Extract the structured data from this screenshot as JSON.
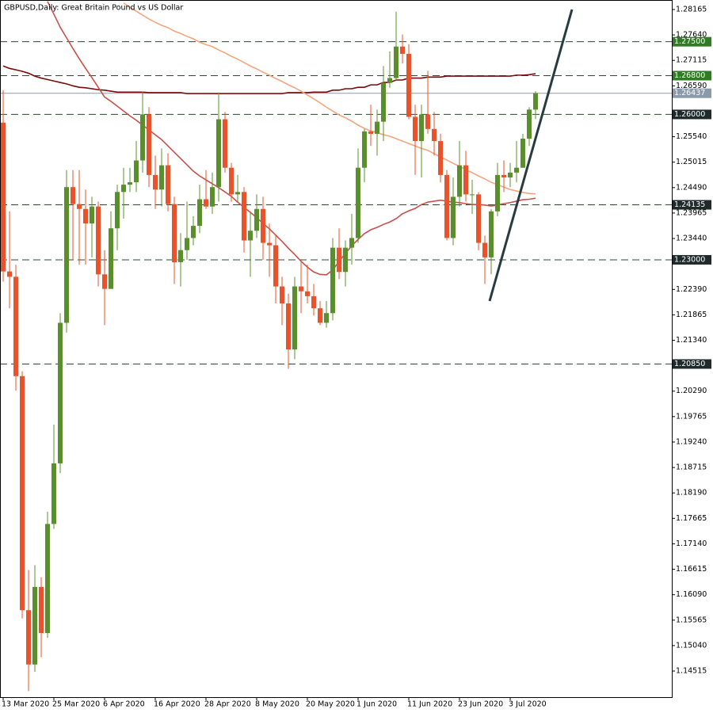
{
  "chart_data": {
    "type": "candlestick",
    "title": "GBPUSD,Daily:  Great Britain Pound vs US Dollar",
    "categories": [
      "13 Mar 2020",
      null,
      null,
      null,
      null,
      null,
      null,
      null,
      "25 Mar 2020",
      null,
      null,
      null,
      null,
      null,
      null,
      null,
      "6 Apr 2020",
      null,
      null,
      null,
      null,
      null,
      null,
      null,
      "16 Apr 2020",
      null,
      null,
      null,
      null,
      null,
      null,
      null,
      "28 Apr 2020",
      null,
      null,
      null,
      null,
      null,
      null,
      null,
      "8 May 2020",
      null,
      null,
      null,
      null,
      null,
      null,
      null,
      "20 May 2020",
      null,
      null,
      null,
      null,
      null,
      null,
      null,
      "1 Jun 2020",
      null,
      null,
      null,
      null,
      null,
      null,
      null,
      "11 Jun 2020",
      null,
      null,
      null,
      null,
      null,
      null,
      null,
      "23 Jun 2020",
      null,
      null,
      null,
      null,
      null,
      null,
      null,
      "3 Jul 2020",
      null,
      null,
      null,
      null
    ],
    "open": [
      1.2583,
      1.2276,
      1.2265,
      1.206,
      1.1577,
      1.1465,
      1.1625,
      1.153,
      1.1755,
      1.188,
      1.217,
      1.245,
      1.2415,
      1.2405,
      1.2375,
      1.241,
      1.227,
      1.224,
      1.2365,
      1.244,
      1.2455,
      1.246,
      1.2505,
      1.26,
      1.2475,
      1.2445,
      1.2495,
      1.2415,
      1.2295,
      1.232,
      1.2345,
      1.237,
      1.2425,
      1.241,
      1.245,
      1.259,
      1.249,
      1.2435,
      1.244,
      1.234,
      1.236,
      1.2405,
      1.2335,
      1.233,
      1.2245,
      1.221,
      1.2115,
      1.2245,
      1.2235,
      1.2225,
      1.22,
      1.217,
      1.219,
      1.2325,
      1.2275,
      1.2325,
      1.2345,
      1.249,
      1.2565,
      1.256,
      1.2585,
      1.2665,
      1.2675,
      1.274,
      1.2725,
      1.2595,
      1.2545,
      1.26,
      1.257,
      1.2545,
      1.2475,
      1.2345,
      1.243,
      1.2495,
      1.2435,
      1.2435,
      1.2335,
      1.2305,
      1.24,
      1.2475,
      1.247,
      1.248,
      1.249,
      1.255,
      1.261
    ],
    "high": [
      1.265,
      1.24,
      1.229,
      1.207,
      1.166,
      1.167,
      1.1645,
      1.178,
      1.196,
      1.219,
      1.2485,
      1.2485,
      1.2485,
      1.2445,
      1.243,
      1.242,
      1.232,
      1.24,
      1.2455,
      1.249,
      1.249,
      1.2545,
      1.2647,
      1.2615,
      1.2515,
      1.253,
      1.252,
      1.243,
      1.2355,
      1.242,
      1.239,
      1.2455,
      1.2485,
      1.248,
      1.2645,
      1.2605,
      1.25,
      1.2475,
      1.245,
      1.24,
      1.2435,
      1.243,
      1.2375,
      1.235,
      1.2265,
      1.223,
      1.2265,
      1.2295,
      1.229,
      1.225,
      1.2215,
      1.2215,
      1.2345,
      1.2365,
      1.234,
      1.2395,
      1.253,
      1.257,
      1.262,
      1.261,
      1.27,
      1.273,
      1.2812,
      1.2765,
      1.2745,
      1.262,
      1.262,
      1.269,
      1.2605,
      1.256,
      1.2485,
      1.247,
      1.2545,
      1.2525,
      1.2465,
      1.244,
      1.235,
      1.2405,
      1.25,
      1.2505,
      1.25,
      1.2545,
      1.256,
      1.2615,
      1.2648
    ],
    "low": [
      1.2255,
      1.22,
      1.203,
      1.156,
      1.141,
      1.145,
      1.148,
      1.152,
      1.1745,
      1.186,
      1.215,
      1.23,
      1.229,
      1.229,
      1.2305,
      1.2245,
      1.2165,
      1.224,
      1.232,
      1.2385,
      1.244,
      1.244,
      1.248,
      1.245,
      1.2405,
      1.241,
      1.24,
      1.225,
      1.2245,
      1.23,
      1.233,
      1.2355,
      1.2405,
      1.2395,
      1.242,
      1.248,
      1.242,
      1.242,
      1.2315,
      1.2265,
      1.2345,
      1.23,
      1.2265,
      1.221,
      1.2165,
      1.2075,
      1.2095,
      1.219,
      1.221,
      1.2185,
      1.2165,
      1.216,
      1.2175,
      1.226,
      1.2245,
      1.229,
      1.2335,
      1.246,
      1.2535,
      1.2515,
      1.2545,
      1.2655,
      1.267,
      1.2705,
      1.259,
      1.2475,
      1.247,
      1.256,
      1.2515,
      1.246,
      1.234,
      1.233,
      1.241,
      1.242,
      1.2395,
      1.232,
      1.225,
      1.227,
      1.239,
      1.244,
      1.245,
      1.246,
      1.249,
      1.2535,
      1.259
    ],
    "close": [
      1.2276,
      1.2265,
      1.206,
      1.1577,
      1.1465,
      1.1625,
      1.153,
      1.1755,
      1.188,
      1.217,
      1.245,
      1.2415,
      1.2405,
      1.2375,
      1.241,
      1.227,
      1.224,
      1.2365,
      1.244,
      1.2455,
      1.246,
      1.2505,
      1.26,
      1.2475,
      1.2445,
      1.2495,
      1.2415,
      1.2295,
      1.232,
      1.2345,
      1.237,
      1.2425,
      1.241,
      1.245,
      1.259,
      1.249,
      1.2435,
      1.244,
      1.234,
      1.236,
      1.2405,
      1.2335,
      1.233,
      1.2245,
      1.221,
      1.2115,
      1.2245,
      1.2235,
      1.2225,
      1.22,
      1.217,
      1.219,
      1.2325,
      1.2275,
      1.2325,
      1.2345,
      1.249,
      1.2565,
      1.256,
      1.2585,
      1.2665,
      1.2675,
      1.274,
      1.2725,
      1.2595,
      1.2545,
      1.26,
      1.257,
      1.2545,
      1.2475,
      1.2345,
      1.243,
      1.2495,
      1.2435,
      1.2435,
      1.2335,
      1.2305,
      1.24,
      1.2475,
      1.247,
      1.248,
      1.249,
      1.255,
      1.261,
      1.26437
    ],
    "up_color": "#5b8f2b",
    "down_color": "#e9532b",
    "overlays": [
      {
        "type": "line",
        "color": "#7a0a0a",
        "values": [
          1.27,
          1.2695,
          1.2692,
          1.2689,
          1.2685,
          1.2679,
          1.2675,
          1.2672,
          1.2669,
          1.2666,
          1.2663,
          1.2659,
          1.2656,
          1.2655,
          1.2653,
          1.2651,
          1.265,
          1.2648,
          1.2646,
          1.2646,
          1.2646,
          1.2646,
          1.2646,
          1.2645,
          1.2645,
          1.2645,
          1.2645,
          1.2645,
          1.2645,
          1.2643,
          1.2643,
          1.2643,
          1.2643,
          1.2643,
          1.2643,
          1.2643,
          1.2643,
          1.2643,
          1.2643,
          1.2643,
          1.2643,
          1.2643,
          1.2643,
          1.2643,
          1.2643,
          1.2645,
          1.2645,
          1.2645,
          1.2645,
          1.2646,
          1.2646,
          1.2646,
          1.265,
          1.265,
          1.2653,
          1.2653,
          1.2656,
          1.2656,
          1.2661,
          1.2661,
          1.2666,
          1.2666,
          1.2671,
          1.2671,
          1.2675,
          1.2675,
          1.2675,
          1.2677,
          1.2677,
          1.2677,
          1.2679,
          1.2679,
          1.2679,
          1.2679,
          1.2679,
          1.2679,
          1.2679,
          1.2679,
          1.2679,
          1.2679,
          1.2679,
          1.2681,
          1.2681,
          1.2682,
          1.2684
        ]
      },
      {
        "type": "line",
        "color": "#f4a57c",
        "values": [
          null,
          null,
          null,
          null,
          null,
          null,
          null,
          null,
          null,
          null,
          null,
          null,
          null,
          null,
          null,
          null,
          null,
          null,
          null,
          1.283,
          1.2821,
          1.2813,
          1.2805,
          1.2797,
          1.279,
          1.2784,
          1.2779,
          1.2772,
          1.2767,
          1.2761,
          1.2756,
          1.2749,
          1.2744,
          1.274,
          1.2733,
          1.2727,
          1.272,
          1.2714,
          1.2707,
          1.27,
          1.2694,
          1.2687,
          1.2681,
          1.2674,
          1.2668,
          1.2661,
          1.2655,
          1.2648,
          1.264,
          1.2632,
          1.2624,
          1.2615,
          1.2607,
          1.2599,
          1.2593,
          1.2586,
          1.2578,
          1.2571,
          1.2566,
          1.2563,
          1.2558,
          1.2555,
          1.255,
          1.2545,
          1.254,
          1.2535,
          1.253,
          1.2526,
          1.2519,
          1.2512,
          1.2506,
          1.2499,
          1.2493,
          1.2486,
          1.248,
          1.2473,
          1.2467,
          1.246,
          1.2455,
          1.245,
          1.2445,
          1.2442,
          1.2439,
          1.2437,
          1.2436
        ]
      },
      {
        "type": "line",
        "color": "#c8504a",
        "values": [
          null,
          null,
          null,
          null,
          null,
          null,
          null,
          1.2833,
          1.2807,
          1.278,
          1.2758,
          1.2736,
          1.2715,
          1.2695,
          1.2676,
          1.2656,
          1.2636,
          1.2627,
          1.2617,
          1.2607,
          1.2597,
          1.2588,
          1.2578,
          1.2568,
          1.2558,
          1.2548,
          1.2535,
          1.2522,
          1.2509,
          1.2496,
          1.2483,
          1.2473,
          1.2465,
          1.2457,
          1.2449,
          1.244,
          1.2431,
          1.2419,
          1.2408,
          1.2398,
          1.2387,
          1.2375,
          1.2364,
          1.2351,
          1.2338,
          1.2324,
          1.2311,
          1.2297,
          1.2285,
          1.2275,
          1.227,
          1.2269,
          1.2279,
          1.2297,
          1.2313,
          1.2329,
          1.2342,
          1.2354,
          1.2362,
          1.2367,
          1.2373,
          1.2378,
          1.2385,
          1.2395,
          1.2401,
          1.2406,
          1.2414,
          1.2419,
          1.2421,
          1.2423,
          1.2421,
          1.2419,
          1.2418,
          1.2416,
          1.2414,
          1.2414,
          1.2413,
          1.2411,
          1.2413,
          1.2416,
          1.2418,
          1.2421,
          1.2424,
          1.2425,
          1.2427
        ]
      }
    ],
    "levels": [
      {
        "value": 1.275,
        "label": "1.27500",
        "color": "#2f7d22"
      },
      {
        "value": 1.268,
        "label": "1.26800",
        "color": "#2f7d22"
      },
      {
        "value": 1.26,
        "label": "1.26000",
        "color": "#1f2b2b"
      },
      {
        "value": 1.24135,
        "label": "1.24135",
        "color": "#1f2b2b"
      },
      {
        "value": 1.23,
        "label": "1.23000",
        "color": "#1f2b2b"
      },
      {
        "value": 1.2085,
        "label": "1.20850",
        "color": "#1f2b2b"
      }
    ],
    "current_price": {
      "value": 1.26437,
      "label": "1.26437",
      "color": "#8a9aaa"
    },
    "ylim": [
      1.13976,
      1.28361
    ],
    "yticks": [
      1.28165,
      {
        "value": 1.2764,
        "label": "1.27640"
      },
      1.27115,
      {
        "value": 1.2659,
        "label": "1.26590"
      },
      {
        "value": 1.2554,
        "label": "1.25540"
      },
      1.25015,
      {
        "value": 1.2449,
        "label": "1.24490"
      },
      1.23965,
      {
        "value": 1.2344,
        "label": "1.23440"
      },
      {
        "value": 1.2239,
        "label": "1.22390"
      },
      1.21865,
      {
        "value": 1.2134,
        "label": "1.21340"
      },
      {
        "value": 1.2029,
        "label": "1.20290"
      },
      1.19765,
      {
        "value": 1.1924,
        "label": "1.19240"
      },
      1.18715,
      {
        "value": 1.1819,
        "label": "1.18190"
      },
      1.17665,
      {
        "value": 1.1714,
        "label": "1.17140"
      },
      1.16615,
      {
        "value": 1.1609,
        "label": "1.16090"
      },
      1.15565,
      {
        "value": 1.1504,
        "label": "1.15040"
      },
      1.14515
    ],
    "grid": false
  }
}
